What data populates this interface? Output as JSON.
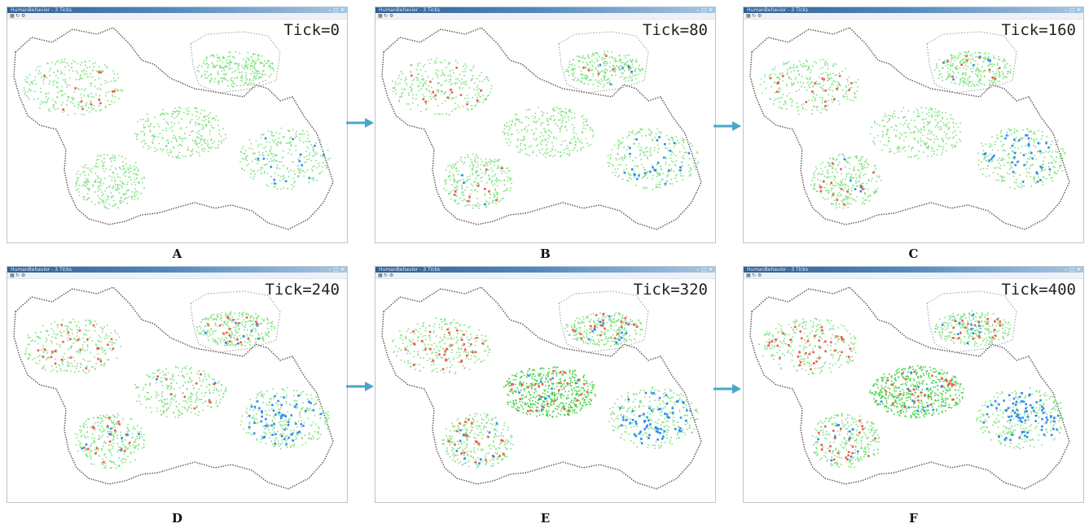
{
  "window": {
    "title": "HumanBehavior - 3 Ticks",
    "controls": [
      "–",
      "□",
      "✕"
    ],
    "toolbar_icons": [
      "grid-icon",
      "refresh-icon",
      "settings-icon"
    ]
  },
  "colors": {
    "green_agent": "#7fe07f",
    "red_agent": "#f05a4e",
    "blue_agent": "#2e8cf0",
    "border": "#555555",
    "arrow": "#4aa6c7"
  },
  "panels": [
    {
      "label": "A",
      "tick": "Tick=0",
      "red": [
        12,
        0,
        0,
        0,
        0
      ],
      "blue": [
        0,
        0,
        0,
        0,
        14
      ]
    },
    {
      "label": "B",
      "tick": "Tick=80",
      "red": [
        14,
        6,
        0,
        10,
        0
      ],
      "blue": [
        0,
        5,
        0,
        3,
        26
      ]
    },
    {
      "label": "C",
      "tick": "Tick=160",
      "red": [
        18,
        10,
        0,
        16,
        0
      ],
      "blue": [
        0,
        6,
        0,
        5,
        38
      ]
    },
    {
      "label": "D",
      "tick": "Tick=240",
      "red": [
        26,
        18,
        10,
        18,
        0
      ],
      "blue": [
        0,
        8,
        2,
        8,
        60
      ]
    },
    {
      "label": "E",
      "tick": "Tick=320",
      "red": [
        34,
        22,
        30,
        22,
        0
      ],
      "blue": [
        0,
        12,
        10,
        10,
        70
      ]
    },
    {
      "label": "F",
      "tick": "Tick=400",
      "red": [
        40,
        22,
        30,
        24,
        0
      ],
      "blue": [
        0,
        10,
        12,
        10,
        80
      ]
    }
  ]
}
